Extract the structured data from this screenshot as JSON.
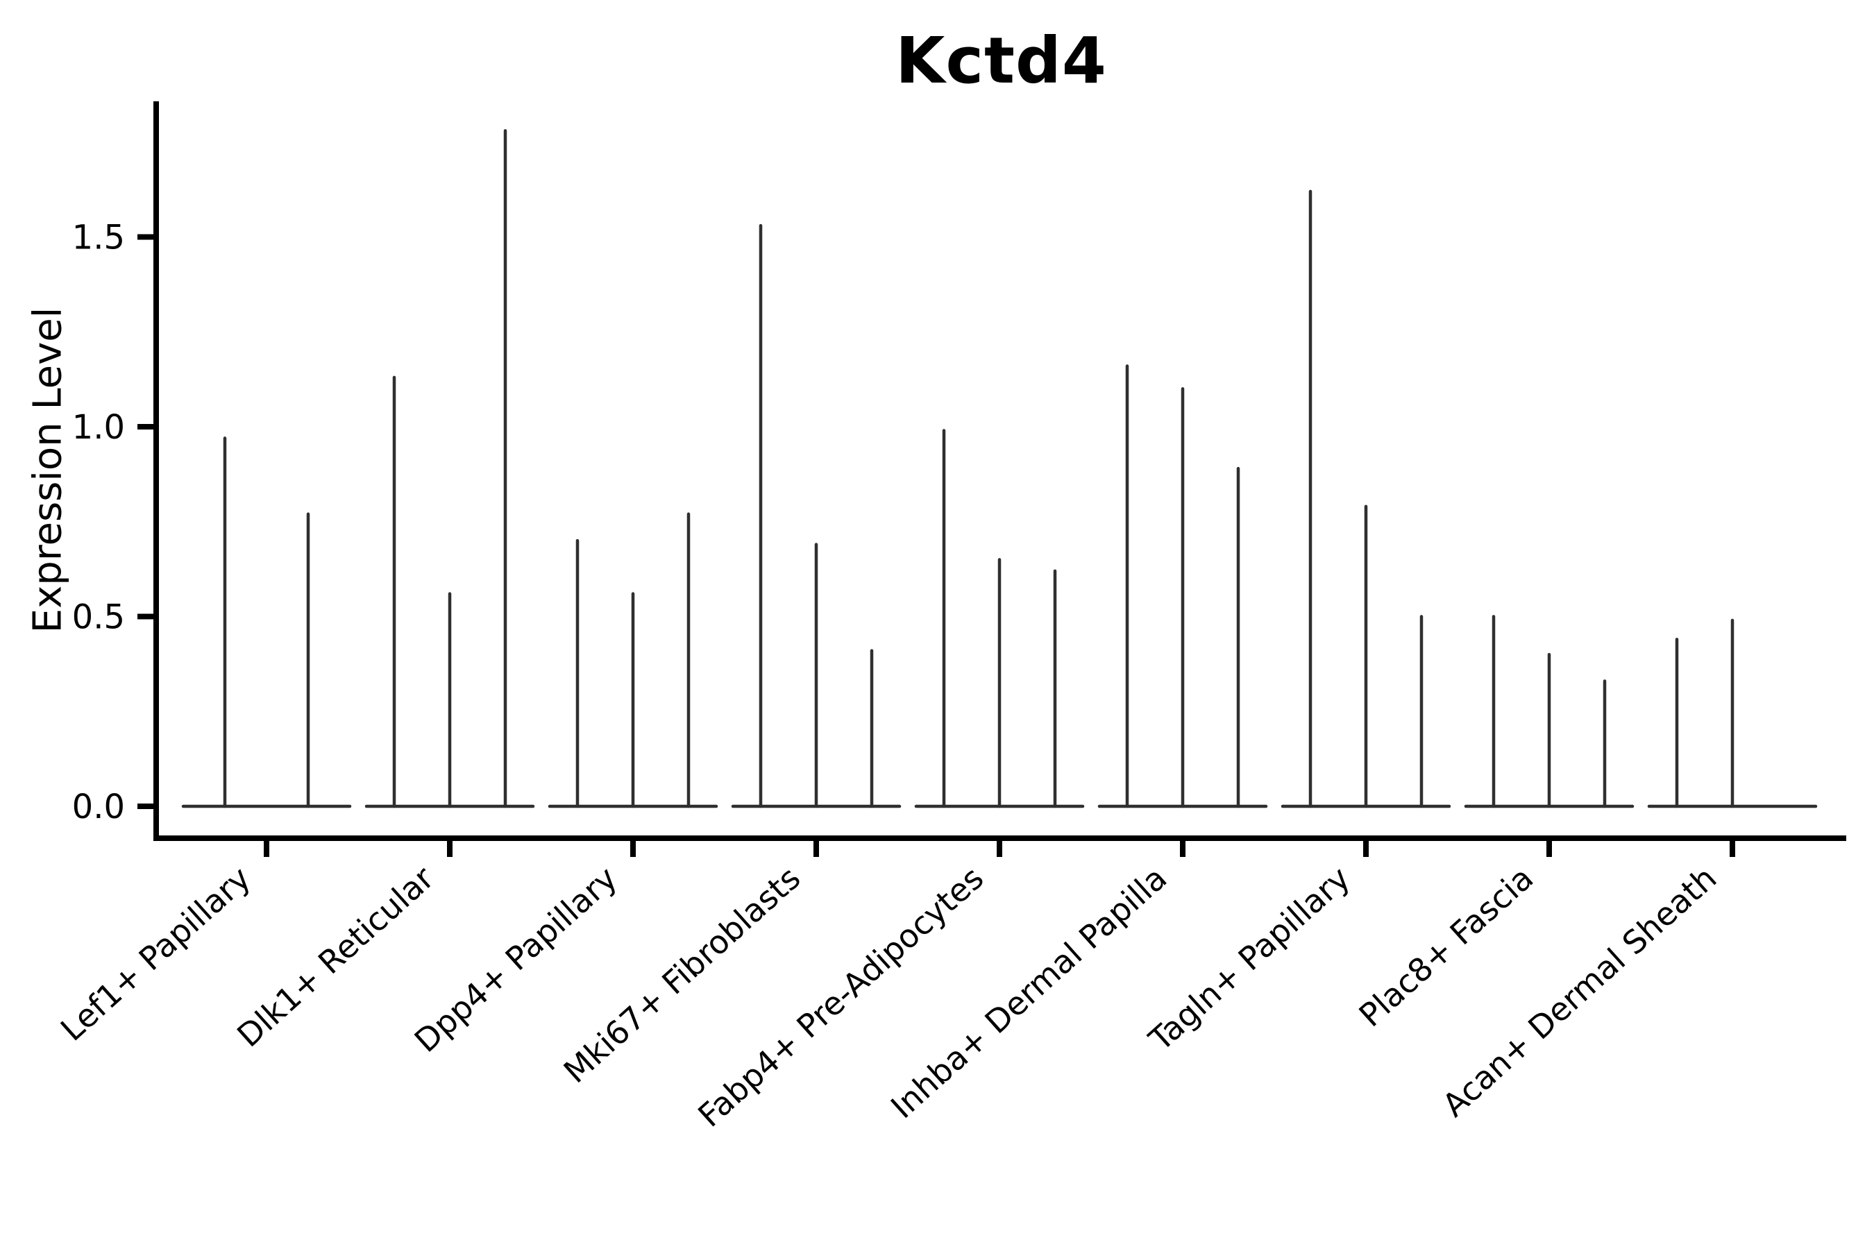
{
  "chart_data": {
    "type": "violin",
    "title": "Kctd4",
    "xlabel": "",
    "ylabel": "Expression Level",
    "ytick_values": [
      0.0,
      0.5,
      1.0,
      1.5
    ],
    "ytick_labels": [
      "0.0",
      "0.5",
      "1.0",
      "1.5"
    ],
    "ylim": [
      -0.09,
      1.86
    ],
    "grid": false,
    "legend": "none",
    "violin_style": "sparse expression: wide flat base at 0 with thin density spikes per violin",
    "baseline_value": 0.0,
    "colors": {
      "violin_stroke": "#2f2f2f",
      "axis": "#000000",
      "text": "#000000",
      "background": "#ffffff"
    },
    "groups": [
      {
        "label": "Lef1+ Papillary",
        "n_slots": 2,
        "spikes": [
          {
            "slot": 0,
            "peak": 0.97
          },
          {
            "slot": 1,
            "peak": 0.77
          }
        ]
      },
      {
        "label": "Dlk1+ Reticular",
        "n_slots": 3,
        "spikes": [
          {
            "slot": 0,
            "peak": 1.13
          },
          {
            "slot": 1,
            "peak": 0.56
          },
          {
            "slot": 2,
            "peak": 1.78
          }
        ]
      },
      {
        "label": "Dpp4+ Papillary",
        "n_slots": 3,
        "spikes": [
          {
            "slot": 0,
            "peak": 0.7
          },
          {
            "slot": 1,
            "peak": 0.56
          },
          {
            "slot": 2,
            "peak": 0.77
          }
        ]
      },
      {
        "label": "Mki67+ Fibroblasts",
        "n_slots": 3,
        "spikes": [
          {
            "slot": 0,
            "peak": 1.53
          },
          {
            "slot": 1,
            "peak": 0.69
          },
          {
            "slot": 2,
            "peak": 0.41
          }
        ]
      },
      {
        "label": "Fabp4+ Pre-Adipocytes",
        "n_slots": 3,
        "spikes": [
          {
            "slot": 0,
            "peak": 0.99
          },
          {
            "slot": 1,
            "peak": 0.65
          },
          {
            "slot": 2,
            "peak": 0.62
          }
        ]
      },
      {
        "label": "Inhba+ Dermal Papilla",
        "n_slots": 3,
        "spikes": [
          {
            "slot": 0,
            "peak": 1.16
          },
          {
            "slot": 1,
            "peak": 1.1
          },
          {
            "slot": 2,
            "peak": 0.89
          }
        ]
      },
      {
        "label": "Tagln+ Papillary",
        "n_slots": 3,
        "spikes": [
          {
            "slot": 0,
            "peak": 1.62
          },
          {
            "slot": 1,
            "peak": 0.79
          },
          {
            "slot": 2,
            "peak": 0.5
          }
        ]
      },
      {
        "label": "Plac8+ Fascia",
        "n_slots": 3,
        "spikes": [
          {
            "slot": 0,
            "peak": 0.5
          },
          {
            "slot": 1,
            "peak": 0.4
          },
          {
            "slot": 2,
            "peak": 0.33
          }
        ]
      },
      {
        "label": "Acan+ Dermal Sheath",
        "n_slots": 3,
        "spikes": [
          {
            "slot": 0,
            "peak": 0.44
          },
          {
            "slot": 1,
            "peak": 0.49
          }
        ]
      }
    ]
  }
}
